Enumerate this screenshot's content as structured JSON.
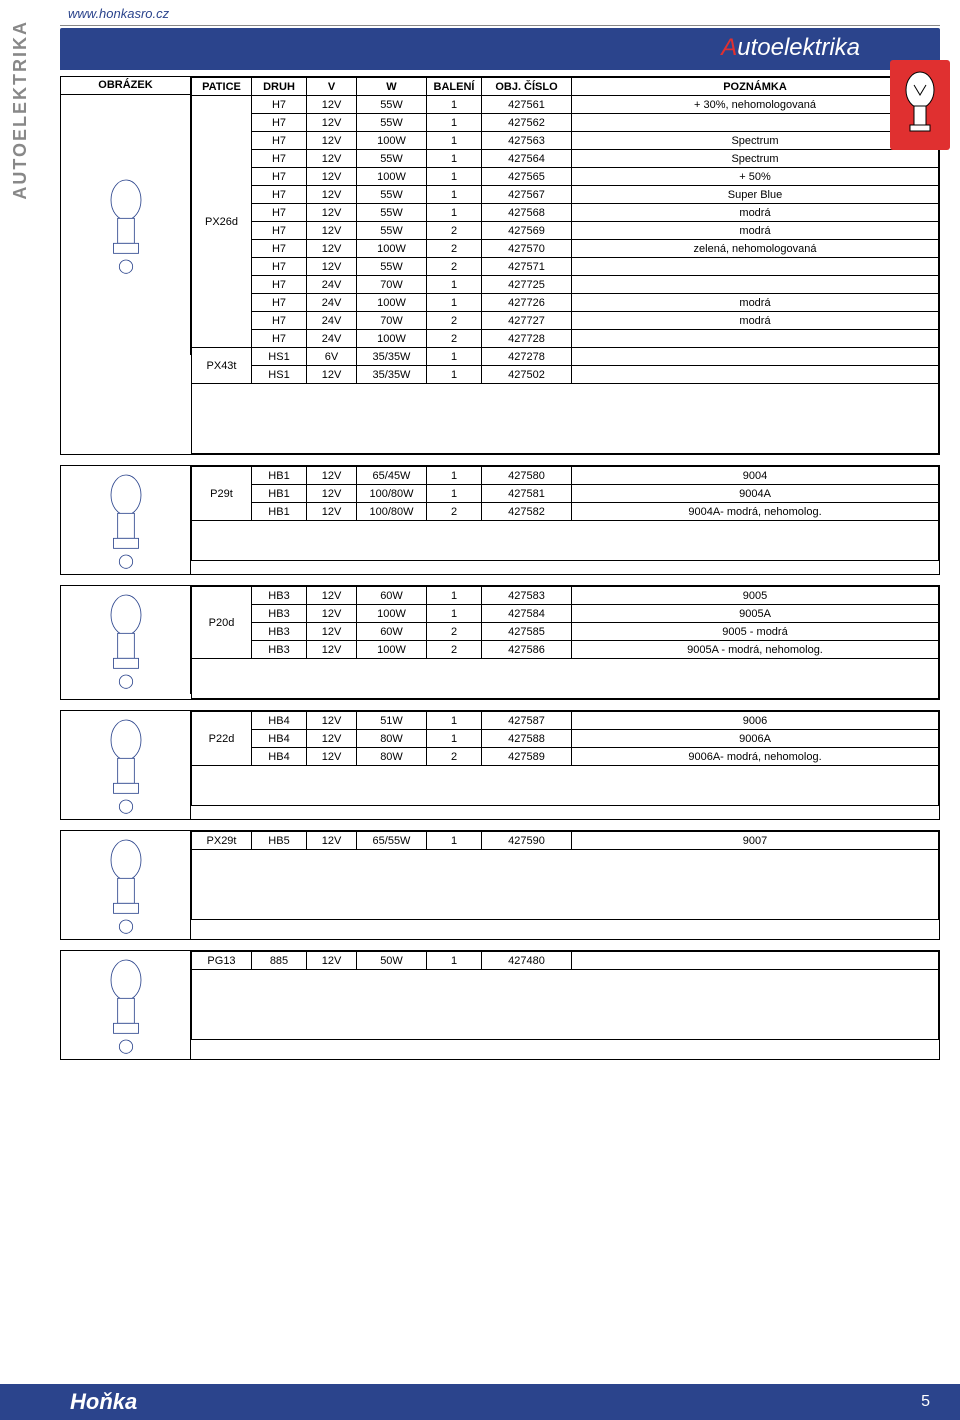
{
  "url": "www.honkasro.cz",
  "vertical_label": "AUTOELEKTRIKA",
  "banner_title_accent": "A",
  "banner_title_rest": "utoelektrika",
  "headers": {
    "obrazek": "OBRÁZEK",
    "patice": "PATICE",
    "druh": "DRUH",
    "v": "V",
    "w": "W",
    "baleni": "BALENÍ",
    "cislo": "OBJ. ČÍSLO",
    "poznamka": "POZNÁMKA"
  },
  "colors": {
    "banner": "#2b448c",
    "accent": "#e03030",
    "text": "#000000",
    "vertical": "#888888"
  },
  "sections": [
    {
      "patice_groups": [
        {
          "patice": "PX26d",
          "rows": [
            {
              "druh": "H7",
              "v": "12V",
              "w": "55W",
              "baleni": "1",
              "cislo": "427561",
              "poznamka": "+ 30%, nehomologovaná"
            },
            {
              "druh": "H7",
              "v": "12V",
              "w": "55W",
              "baleni": "1",
              "cislo": "427562",
              "poznamka": ""
            },
            {
              "druh": "H7",
              "v": "12V",
              "w": "100W",
              "baleni": "1",
              "cislo": "427563",
              "poznamka": "Spectrum"
            },
            {
              "druh": "H7",
              "v": "12V",
              "w": "55W",
              "baleni": "1",
              "cislo": "427564",
              "poznamka": "Spectrum"
            },
            {
              "druh": "H7",
              "v": "12V",
              "w": "100W",
              "baleni": "1",
              "cislo": "427565",
              "poznamka": "+ 50%"
            },
            {
              "druh": "H7",
              "v": "12V",
              "w": "55W",
              "baleni": "1",
              "cislo": "427567",
              "poznamka": "Super Blue"
            },
            {
              "druh": "H7",
              "v": "12V",
              "w": "55W",
              "baleni": "1",
              "cislo": "427568",
              "poznamka": "modrá"
            },
            {
              "druh": "H7",
              "v": "12V",
              "w": "55W",
              "baleni": "2",
              "cislo": "427569",
              "poznamka": "modrá"
            },
            {
              "druh": "H7",
              "v": "12V",
              "w": "100W",
              "baleni": "2",
              "cislo": "427570",
              "poznamka": "zelená, nehomologovaná"
            },
            {
              "druh": "H7",
              "v": "12V",
              "w": "55W",
              "baleni": "2",
              "cislo": "427571",
              "poznamka": ""
            },
            {
              "druh": "H7",
              "v": "24V",
              "w": "70W",
              "baleni": "1",
              "cislo": "427725",
              "poznamka": ""
            },
            {
              "druh": "H7",
              "v": "24V",
              "w": "100W",
              "baleni": "1",
              "cislo": "427726",
              "poznamka": "modrá"
            },
            {
              "druh": "H7",
              "v": "24V",
              "w": "70W",
              "baleni": "2",
              "cislo": "427727",
              "poznamka": "modrá"
            },
            {
              "druh": "H7",
              "v": "24V",
              "w": "100W",
              "baleni": "2",
              "cislo": "427728",
              "poznamka": ""
            }
          ]
        },
        {
          "patice": "PX43t",
          "rows": [
            {
              "druh": "HS1",
              "v": "6V",
              "w": "35/35W",
              "baleni": "1",
              "cislo": "427278",
              "poznamka": ""
            },
            {
              "druh": "HS1",
              "v": "12V",
              "w": "35/35W",
              "baleni": "1",
              "cislo": "427502",
              "poznamka": ""
            }
          ]
        }
      ],
      "show_header": true,
      "tall_spacer": true
    },
    {
      "patice_groups": [
        {
          "patice": "P29t",
          "rows": [
            {
              "druh": "HB1",
              "v": "12V",
              "w": "65/45W",
              "baleni": "1",
              "cislo": "427580",
              "poznamka": "9004"
            },
            {
              "druh": "HB1",
              "v": "12V",
              "w": "100/80W",
              "baleni": "1",
              "cislo": "427581",
              "poznamka": "9004A"
            },
            {
              "druh": "HB1",
              "v": "12V",
              "w": "100/80W",
              "baleni": "2",
              "cislo": "427582",
              "poznamka": "9004A- modrá, nehomolog."
            }
          ]
        }
      ]
    },
    {
      "patice_groups": [
        {
          "patice": "P20d",
          "rows": [
            {
              "druh": "HB3",
              "v": "12V",
              "w": "60W",
              "baleni": "1",
              "cislo": "427583",
              "poznamka": "9005"
            },
            {
              "druh": "HB3",
              "v": "12V",
              "w": "100W",
              "baleni": "1",
              "cislo": "427584",
              "poznamka": "9005A"
            },
            {
              "druh": "HB3",
              "v": "12V",
              "w": "60W",
              "baleni": "2",
              "cislo": "427585",
              "poznamka": "9005 - modrá"
            },
            {
              "druh": "HB3",
              "v": "12V",
              "w": "100W",
              "baleni": "2",
              "cislo": "427586",
              "poznamka": "9005A - modrá, nehomolog."
            }
          ]
        }
      ]
    },
    {
      "patice_groups": [
        {
          "patice": "P22d",
          "rows": [
            {
              "druh": "HB4",
              "v": "12V",
              "w": "51W",
              "baleni": "1",
              "cislo": "427587",
              "poznamka": "9006"
            },
            {
              "druh": "HB4",
              "v": "12V",
              "w": "80W",
              "baleni": "1",
              "cislo": "427588",
              "poznamka": "9006A"
            },
            {
              "druh": "HB4",
              "v": "12V",
              "w": "80W",
              "baleni": "2",
              "cislo": "427589",
              "poznamka": "9006A- modrá, nehomolog."
            }
          ]
        }
      ]
    },
    {
      "patice_groups": [
        {
          "patice": "PX29t",
          "rows": [
            {
              "druh": "HB5",
              "v": "12V",
              "w": "65/55W",
              "baleni": "1",
              "cislo": "427590",
              "poznamka": "9007"
            }
          ]
        }
      ],
      "tall_spacer": true
    },
    {
      "patice_groups": [
        {
          "patice": "PG13",
          "rows": [
            {
              "druh": "885",
              "v": "12V",
              "w": "50W",
              "baleni": "1",
              "cislo": "427480",
              "poznamka": ""
            }
          ]
        }
      ],
      "tall_spacer": true
    }
  ],
  "footer": {
    "brand": "Hoňka",
    "page": "5"
  }
}
